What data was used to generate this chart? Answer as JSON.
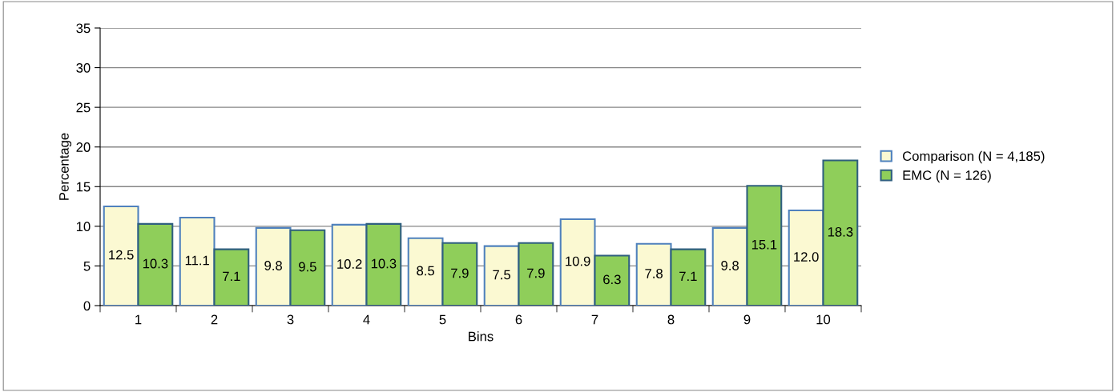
{
  "chart_data": {
    "type": "bar",
    "xlabel": "Bins",
    "ylabel": "Percentage",
    "categories": [
      "1",
      "2",
      "3",
      "4",
      "5",
      "6",
      "7",
      "8",
      "9",
      "10"
    ],
    "series": [
      {
        "name": "Comparison (N = 4,185)",
        "color": "#fbf9d2",
        "values": [
          12.5,
          11.1,
          9.8,
          10.2,
          8.5,
          7.5,
          10.9,
          7.8,
          9.8,
          12.0
        ],
        "value_labels": [
          "12.5",
          "11.1",
          "9.8",
          "10.2",
          "8.5",
          "7.5",
          "10.9",
          "7.8",
          "9.8",
          "12.0"
        ]
      },
      {
        "name": "EMC (N = 126)",
        "color": "#8fce5a",
        "values": [
          10.3,
          7.1,
          9.5,
          10.3,
          7.9,
          7.9,
          6.3,
          7.1,
          15.1,
          18.3
        ],
        "value_labels": [
          "10.3",
          "7.1",
          "9.5",
          "10.3",
          "7.9",
          "7.9",
          "6.3",
          "7.1",
          "15.1",
          "18.3"
        ]
      }
    ],
    "ylim": [
      0,
      35
    ],
    "yticks": [
      0,
      5,
      10,
      15,
      20,
      25,
      30,
      35
    ],
    "grid": "y",
    "legend": "right"
  }
}
